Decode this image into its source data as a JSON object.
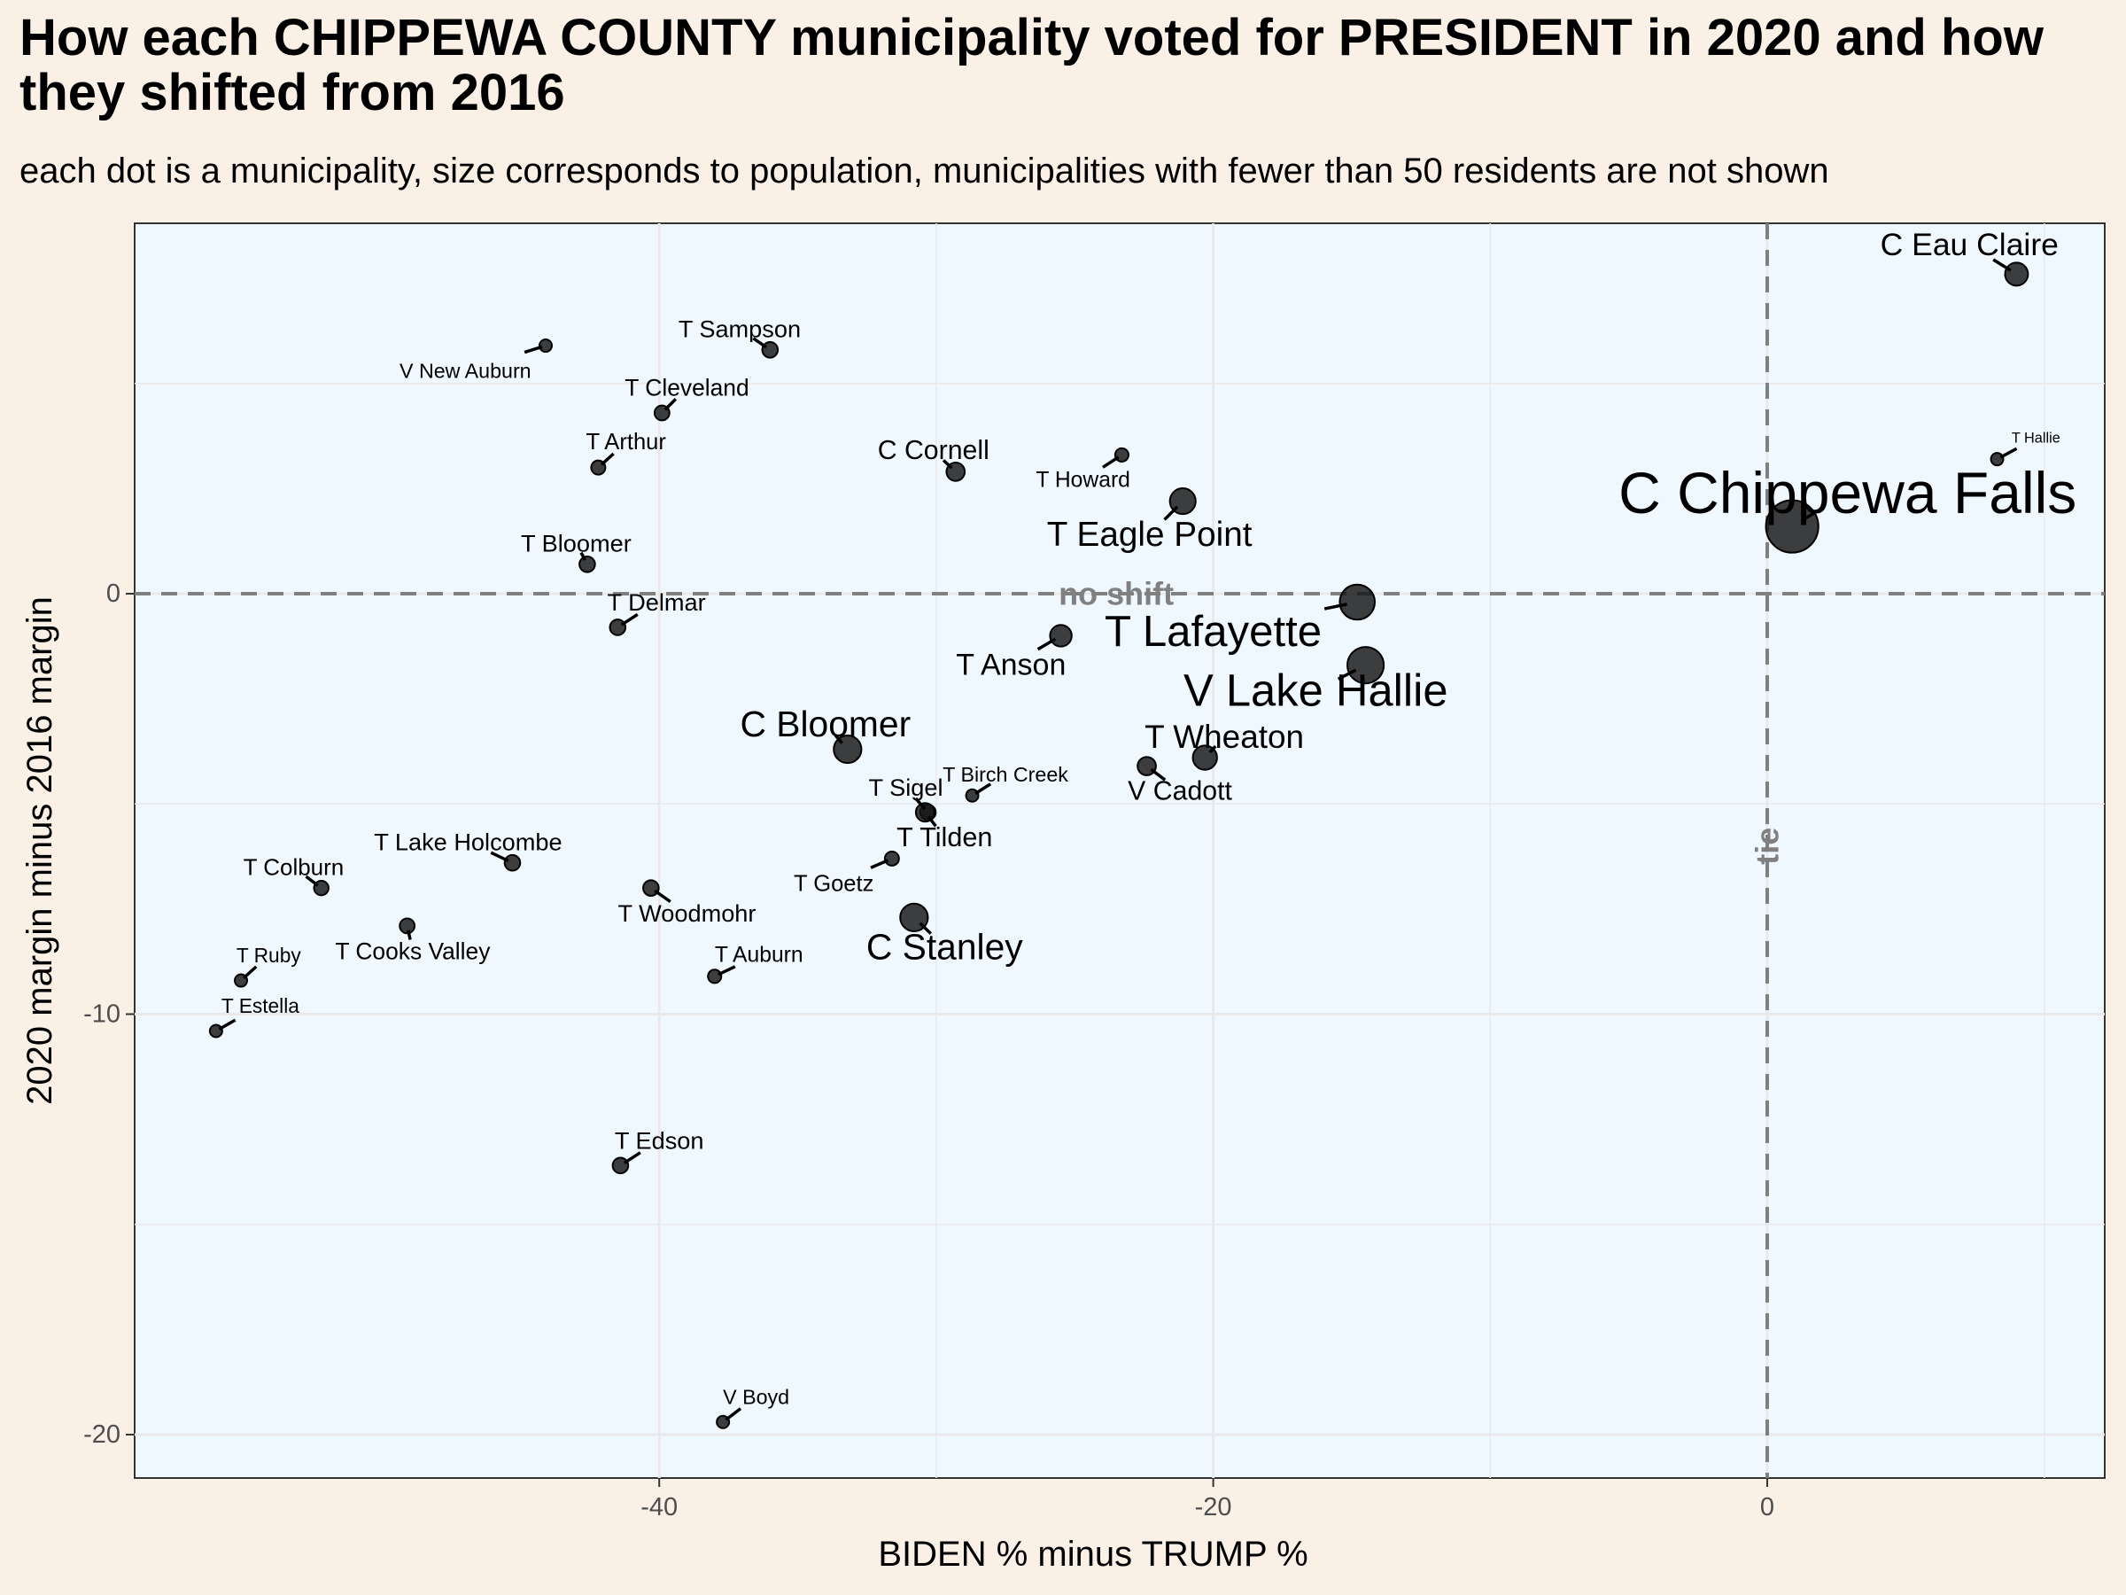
{
  "title": "How each CHIPPEWA COUNTY municipality voted for PRESIDENT in 2020 and how they shifted from 2016",
  "subtitle": "each dot is a municipality, size corresponds to population, municipalities with fewer than 50 residents are not shown",
  "chart_data": {
    "type": "scatter",
    "xlabel": "BIDEN % minus TRUMP %",
    "ylabel": "2020 margin minus 2016 margin",
    "xlim": [
      -47.5,
      12.5
    ],
    "ylim": [
      -21,
      8.5
    ],
    "x_ticks": [
      -40,
      -20,
      0
    ],
    "y_ticks": [
      -20,
      -10,
      0
    ],
    "grid": true,
    "annotations": [
      {
        "text": "no shift",
        "x": -23.5,
        "y": 0
      },
      {
        "text": "tie",
        "x": 0,
        "y": -6
      }
    ],
    "points": [
      {
        "name": "C Eau Claire",
        "x": 9.0,
        "y": 7.6,
        "pop": 2400,
        "lx": 7.3,
        "ly": 8.3
      },
      {
        "name": "T Hallie",
        "x": 8.3,
        "y": 3.2,
        "pop": 80,
        "lx": 9.7,
        "ly": 3.7
      },
      {
        "name": "C Chippewa Falls",
        "x": 0.9,
        "y": 1.6,
        "pop": 14000,
        "lx": 2.9,
        "ly": 2.4
      },
      {
        "name": "V New Auburn",
        "x": -44.1,
        "y": 5.9,
        "pop": 550,
        "lx": -47.0,
        "ly": 5.3
      },
      {
        "name": "T Sampson",
        "x": -36.0,
        "y": 5.8,
        "pop": 1000,
        "lx": -37.1,
        "ly": 6.3
      },
      {
        "name": "T Cleveland",
        "x": -39.9,
        "y": 4.3,
        "pop": 900,
        "lx": -39.0,
        "ly": 4.9
      },
      {
        "name": "T Arthur",
        "x": -42.2,
        "y": 3.0,
        "pop": 800,
        "lx": -41.2,
        "ly": 3.6
      },
      {
        "name": "C Cornell",
        "x": -29.3,
        "y": 2.9,
        "pop": 1450,
        "lx": -30.1,
        "ly": 3.4
      },
      {
        "name": "T Howard",
        "x": -23.3,
        "y": 3.3,
        "pop": 700,
        "lx": -24.7,
        "ly": 2.7
      },
      {
        "name": "T Eagle Point",
        "x": -21.1,
        "y": 2.2,
        "pop": 3100,
        "lx": -22.3,
        "ly": 1.4
      },
      {
        "name": "T Bloomer",
        "x": -42.6,
        "y": 0.7,
        "pop": 1000,
        "lx": -43.0,
        "ly": 1.2
      },
      {
        "name": "T Delmar",
        "x": -41.5,
        "y": -0.8,
        "pop": 1000,
        "lx": -40.1,
        "ly": -0.2
      },
      {
        "name": "T Lafayette",
        "x": -14.8,
        "y": -0.2,
        "pop": 6000,
        "lx": -20.0,
        "ly": -0.9
      },
      {
        "name": "T Anson",
        "x": -25.5,
        "y": -1.0,
        "pop": 2100,
        "lx": -27.3,
        "ly": -1.7
      },
      {
        "name": "V Lake Hallie",
        "x": -14.5,
        "y": -1.7,
        "pop": 6500,
        "lx": -16.3,
        "ly": -2.3
      },
      {
        "name": "C Bloomer",
        "x": -33.2,
        "y": -3.7,
        "pop": 3600,
        "lx": -34.0,
        "ly": -3.1
      },
      {
        "name": "T Wheaton",
        "x": -20.3,
        "y": -3.9,
        "pop": 2700,
        "lx": -19.6,
        "ly": -3.4
      },
      {
        "name": "V Cadott",
        "x": -22.4,
        "y": -4.1,
        "pop": 1450,
        "lx": -21.2,
        "ly": -4.7
      },
      {
        "name": "T Birch Creek",
        "x": -28.7,
        "y": -4.8,
        "pop": 550,
        "lx": -27.5,
        "ly": -4.3
      },
      {
        "name": "T Sigel",
        "x": -30.3,
        "y": -5.2,
        "pop": 1000,
        "lx": -31.1,
        "ly": -4.6
      },
      {
        "name": "T Tilden",
        "x": -30.4,
        "y": -5.2,
        "pop": 1500,
        "lx": -29.7,
        "ly": -5.8
      },
      {
        "name": "T Lake Holcombe",
        "x": -45.3,
        "y": -6.4,
        "pop": 1000,
        "lx": -46.9,
        "ly": -5.9
      },
      {
        "name": "T Goetz",
        "x": -31.6,
        "y": -6.3,
        "pop": 800,
        "lx": -33.7,
        "ly": -6.9
      },
      {
        "name": "T Colburn",
        "x": -52.2,
        "y": -7.0,
        "pop": 850,
        "lx": -53.2,
        "ly": -6.5
      },
      {
        "name": "T Woodmohr",
        "x": -40.3,
        "y": -7.0,
        "pop": 1000,
        "lx": -39.0,
        "ly": -7.6
      },
      {
        "name": "C Stanley",
        "x": -30.8,
        "y": -7.7,
        "pop": 3600,
        "lx": -29.7,
        "ly": -8.4
      },
      {
        "name": "T Cooks Valley",
        "x": -49.1,
        "y": -7.9,
        "pop": 900,
        "lx": -48.9,
        "ly": -8.5
      },
      {
        "name": "T Auburn",
        "x": -38.0,
        "y": -9.1,
        "pop": 700,
        "lx": -36.4,
        "ly": -8.6
      },
      {
        "name": "T Ruby",
        "x": -55.1,
        "y": -9.2,
        "pop": 500,
        "lx": -54.1,
        "ly": -8.6
      },
      {
        "name": "T Estella",
        "x": -56.0,
        "y": -10.4,
        "pop": 500,
        "lx": -54.4,
        "ly": -9.8
      },
      {
        "name": "T Edson",
        "x": -41.4,
        "y": -13.6,
        "pop": 1000,
        "lx": -40.0,
        "ly": -13.0
      },
      {
        "name": "V Boyd",
        "x": -37.7,
        "y": -19.7,
        "pop": 550,
        "lx": -36.5,
        "ly": -19.1
      }
    ]
  }
}
